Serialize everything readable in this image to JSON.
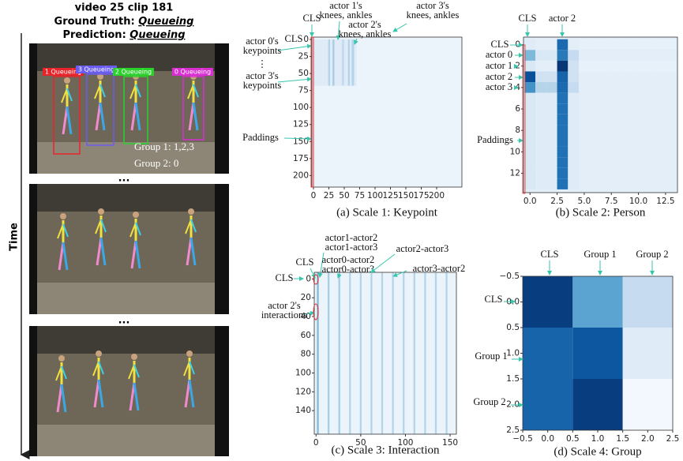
{
  "video_panel": {
    "title": "video 25 clip 181",
    "ground_truth_label": "Ground Truth:",
    "ground_truth_value": "Queueing",
    "prediction_label": "Prediction:",
    "prediction_value": "Queueing",
    "boxes": [
      {
        "label": "1 Queueing",
        "color": "#e8242a"
      },
      {
        "label": "3 Queueing",
        "color": "#6a5cf0"
      },
      {
        "label": "2 Queueing",
        "color": "#2bd12b"
      },
      {
        "label": "0 Queueing",
        "color": "#d82ed2"
      }
    ],
    "groups": [
      "Group 1: 1,2,3",
      "Group 2: 0"
    ],
    "ellipsis": "...",
    "time_label": "Time"
  },
  "panels": [
    {
      "type": "heatmap",
      "caption": "(a) Scale 1: Keypoint",
      "xlim": [
        -2.5,
        241
      ],
      "ylim": [
        -3.5,
        217
      ],
      "y_inverted": true,
      "xticks": [
        0,
        25,
        50,
        75,
        100,
        125,
        150,
        175,
        200
      ],
      "yticks": [
        0,
        25,
        50,
        75,
        100,
        125,
        150,
        175,
        200
      ],
      "background": 0.06,
      "stripes": [
        {
          "x0": 0,
          "x1": 70,
          "y0": 0,
          "y1": 68,
          "value": 0.12
        },
        {
          "x0": 24,
          "x1": 27,
          "y0": 0,
          "y1": 68,
          "value": 0.3
        },
        {
          "x0": 31,
          "x1": 34,
          "y0": 0,
          "y1": 68,
          "value": 0.35
        },
        {
          "x0": 46,
          "x1": 50,
          "y0": 0,
          "y1": 68,
          "value": 0.25
        },
        {
          "x0": 56,
          "x1": 59,
          "y0": 0,
          "y1": 68,
          "value": 0.3
        },
        {
          "x0": 62,
          "x1": 66,
          "y0": 0,
          "y1": 68,
          "value": 0.3
        }
      ],
      "annotations": [
        {
          "lines": [
            "CLS"
          ]
        },
        {
          "lines": [
            "actor 1's",
            "knees, ankles"
          ]
        },
        {
          "lines": [
            "actor 2's",
            "knees, ankles"
          ]
        },
        {
          "lines": [
            "actor 3's",
            "knees, ankles"
          ]
        },
        {
          "lines": [
            "CLS"
          ]
        },
        {
          "lines": [
            "actor 0's",
            "keypoints"
          ]
        },
        {
          "lines": [
            "⋮"
          ]
        },
        {
          "lines": [
            "actor 3's",
            "keypoints"
          ]
        },
        {
          "lines": [
            "Paddings"
          ]
        }
      ]
    },
    {
      "type": "heatmap",
      "caption": "(b) Scale 2: Person",
      "xlim": [
        -0.6,
        13.6
      ],
      "ylim": [
        -0.7,
        13.8
      ],
      "y_inverted": true,
      "xticks": [
        {
          "value": 0,
          "label": "0.0"
        },
        2.5,
        {
          "value": 5,
          "label": "5.0"
        },
        7.5,
        {
          "value": 10,
          "label": "10.0"
        },
        12.5
      ],
      "yticks": [
        0,
        2,
        4,
        6,
        8,
        10,
        12
      ],
      "background": 0.1,
      "matrix": [
        [
          0.12,
          0.1,
          0.1,
          0.78,
          0.1,
          0.08,
          0.08,
          0.08,
          0.08,
          0.08,
          0.08,
          0.08,
          0.08,
          0.08
        ],
        [
          0.45,
          0.15,
          0.15,
          0.72,
          0.25,
          0.1,
          0.1,
          0.1,
          0.1,
          0.1,
          0.1,
          0.1,
          0.1,
          0.1
        ],
        [
          0.15,
          0.1,
          0.1,
          0.98,
          0.2,
          0.08,
          0.08,
          0.08,
          0.08,
          0.08,
          0.08,
          0.08,
          0.08,
          0.08
        ],
        [
          0.88,
          0.2,
          0.2,
          0.8,
          0.2,
          0.1,
          0.1,
          0.1,
          0.1,
          0.1,
          0.1,
          0.1,
          0.1,
          0.1
        ],
        [
          0.62,
          0.3,
          0.3,
          0.78,
          0.25,
          0.1,
          0.1,
          0.1,
          0.1,
          0.1,
          0.1,
          0.1,
          0.1,
          0.1
        ],
        [
          0.15,
          0.12,
          0.12,
          0.75,
          0.12,
          0.1,
          0.1,
          0.1,
          0.1,
          0.1,
          0.1,
          0.1,
          0.1,
          0.1
        ],
        [
          0.15,
          0.12,
          0.12,
          0.75,
          0.12,
          0.1,
          0.1,
          0.1,
          0.1,
          0.1,
          0.1,
          0.1,
          0.1,
          0.1
        ],
        [
          0.15,
          0.12,
          0.12,
          0.75,
          0.12,
          0.1,
          0.1,
          0.1,
          0.1,
          0.1,
          0.1,
          0.1,
          0.1,
          0.1
        ],
        [
          0.15,
          0.12,
          0.12,
          0.75,
          0.12,
          0.1,
          0.1,
          0.1,
          0.1,
          0.1,
          0.1,
          0.1,
          0.1,
          0.1
        ],
        [
          0.15,
          0.12,
          0.12,
          0.75,
          0.12,
          0.1,
          0.1,
          0.1,
          0.1,
          0.1,
          0.1,
          0.1,
          0.1,
          0.1
        ],
        [
          0.15,
          0.12,
          0.12,
          0.75,
          0.12,
          0.1,
          0.1,
          0.1,
          0.1,
          0.1,
          0.1,
          0.1,
          0.1,
          0.1
        ],
        [
          0.15,
          0.12,
          0.12,
          0.75,
          0.12,
          0.1,
          0.1,
          0.1,
          0.1,
          0.1,
          0.1,
          0.1,
          0.1,
          0.1
        ],
        [
          0.15,
          0.12,
          0.12,
          0.75,
          0.12,
          0.1,
          0.1,
          0.1,
          0.1,
          0.1,
          0.1,
          0.1,
          0.1,
          0.1
        ],
        [
          0.15,
          0.12,
          0.12,
          0.75,
          0.12,
          0.1,
          0.1,
          0.1,
          0.1,
          0.1,
          0.1,
          0.1,
          0.1,
          0.1
        ]
      ],
      "annotations": [
        {
          "lines": [
            "CLS"
          ]
        },
        {
          "lines": [
            "actor 2"
          ]
        },
        {
          "lines": [
            "CLS"
          ]
        },
        {
          "lines": [
            "actor 0"
          ]
        },
        {
          "lines": [
            "actor 1"
          ]
        },
        {
          "lines": [
            "actor 2"
          ]
        },
        {
          "lines": [
            "actor 3"
          ]
        },
        {
          "lines": [
            "Paddings"
          ]
        }
      ]
    },
    {
      "type": "heatmap",
      "caption": "(c) Scale 3: Interaction",
      "xlim": [
        -2,
        157
      ],
      "ylim": [
        -7,
        165
      ],
      "y_inverted": true,
      "xticks": [
        0,
        50,
        100,
        150
      ],
      "yticks": [
        0,
        20,
        40,
        60,
        80,
        100,
        120,
        140
      ],
      "background": 0.06,
      "stripes": [
        {
          "x0": 1,
          "x1": 3,
          "y0": -7,
          "y1": 165,
          "value": 0.45
        },
        {
          "x0": 13,
          "x1": 15,
          "y0": -7,
          "y1": 165,
          "value": 0.35
        },
        {
          "x0": 25,
          "x1": 27,
          "y0": -7,
          "y1": 165,
          "value": 0.35
        },
        {
          "x0": 37,
          "x1": 39,
          "y0": -7,
          "y1": 165,
          "value": 0.3
        },
        {
          "x0": 49,
          "x1": 51,
          "y0": -7,
          "y1": 165,
          "value": 0.3
        },
        {
          "x0": 61,
          "x1": 63,
          "y0": -7,
          "y1": 165,
          "value": 0.3
        },
        {
          "x0": 73,
          "x1": 75,
          "y0": -7,
          "y1": 165,
          "value": 0.3
        },
        {
          "x0": 85,
          "x1": 87,
          "y0": -7,
          "y1": 165,
          "value": 0.3
        },
        {
          "x0": 97,
          "x1": 99,
          "y0": -7,
          "y1": 165,
          "value": 0.3
        },
        {
          "x0": 109,
          "x1": 111,
          "y0": -7,
          "y1": 165,
          "value": 0.3
        },
        {
          "x0": 121,
          "x1": 123,
          "y0": -7,
          "y1": 165,
          "value": 0.3
        },
        {
          "x0": 133,
          "x1": 135,
          "y0": -7,
          "y1": 165,
          "value": 0.3
        },
        {
          "x0": 145,
          "x1": 147,
          "y0": -7,
          "y1": 165,
          "value": 0.3
        }
      ],
      "annotations": [
        {
          "lines": [
            "CLS"
          ]
        },
        {
          "lines": [
            "actor1-actor2",
            "actor1-actor3"
          ]
        },
        {
          "lines": [
            "actor0-actor2",
            "actor0-actor3"
          ]
        },
        {
          "lines": [
            "actor2-actor3"
          ]
        },
        {
          "lines": [
            "actor3-actor2"
          ]
        },
        {
          "lines": [
            "CLS"
          ]
        },
        {
          "lines": [
            "actor 2's",
            "interactions"
          ]
        }
      ]
    },
    {
      "type": "heatmap",
      "caption": "(d) Scale 4: Group",
      "xlim": [
        -0.5,
        2.5
      ],
      "ylim": [
        -0.5,
        2.5
      ],
      "y_inverted": true,
      "xticks": [
        {
          "value": -0.5,
          "label": "−0.5"
        },
        {
          "value": 0,
          "label": "0.0"
        },
        0.5,
        {
          "value": 1,
          "label": "1.0"
        },
        1.5,
        {
          "value": 2,
          "label": "2.0"
        },
        2.5
      ],
      "yticks": [
        {
          "value": -0.5,
          "label": "−0.5"
        },
        {
          "value": 0,
          "label": "0.0"
        },
        0.5,
        {
          "value": 1,
          "label": "1.0"
        },
        1.5,
        {
          "value": 2,
          "label": "2.0"
        },
        2.5
      ],
      "background": 0,
      "matrix": [
        [
          0.95,
          0.55,
          0.25
        ],
        [
          0.8,
          0.85,
          0.12
        ],
        [
          0.8,
          0.95,
          0.02
        ]
      ],
      "annotations": [
        {
          "lines": [
            "CLS"
          ]
        },
        {
          "lines": [
            "Group 1"
          ]
        },
        {
          "lines": [
            "Group 2"
          ]
        },
        {
          "lines": [
            "CLS"
          ]
        },
        {
          "lines": [
            "Group 1"
          ]
        },
        {
          "lines": [
            "Group 2"
          ]
        }
      ]
    }
  ]
}
